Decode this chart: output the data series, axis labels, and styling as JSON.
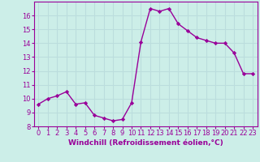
{
  "x": [
    0,
    1,
    2,
    3,
    4,
    5,
    6,
    7,
    8,
    9,
    10,
    11,
    12,
    13,
    14,
    15,
    16,
    17,
    18,
    19,
    20,
    21,
    22,
    23
  ],
  "y": [
    9.6,
    10.0,
    10.2,
    10.5,
    9.6,
    9.7,
    8.8,
    8.6,
    8.4,
    8.5,
    9.7,
    14.1,
    16.5,
    16.3,
    16.5,
    15.4,
    14.9,
    14.4,
    14.2,
    14.0,
    14.0,
    13.3,
    11.8,
    11.8
  ],
  "line_color": "#990099",
  "marker": "D",
  "marker_size": 2.2,
  "bg_color": "#cceee8",
  "grid_color": "#bbdddd",
  "xlabel": "Windchill (Refroidissement éolien,°C)",
  "xlim": [
    -0.5,
    23.5
  ],
  "ylim": [
    8,
    17
  ],
  "yticks": [
    8,
    9,
    10,
    11,
    12,
    13,
    14,
    15,
    16
  ],
  "xticks": [
    0,
    1,
    2,
    3,
    4,
    5,
    6,
    7,
    8,
    9,
    10,
    11,
    12,
    13,
    14,
    15,
    16,
    17,
    18,
    19,
    20,
    21,
    22,
    23
  ],
  "tick_color": "#990099",
  "label_color": "#990099",
  "xlabel_fontsize": 6.5,
  "tick_fontsize": 6.0,
  "linewidth": 1.0
}
